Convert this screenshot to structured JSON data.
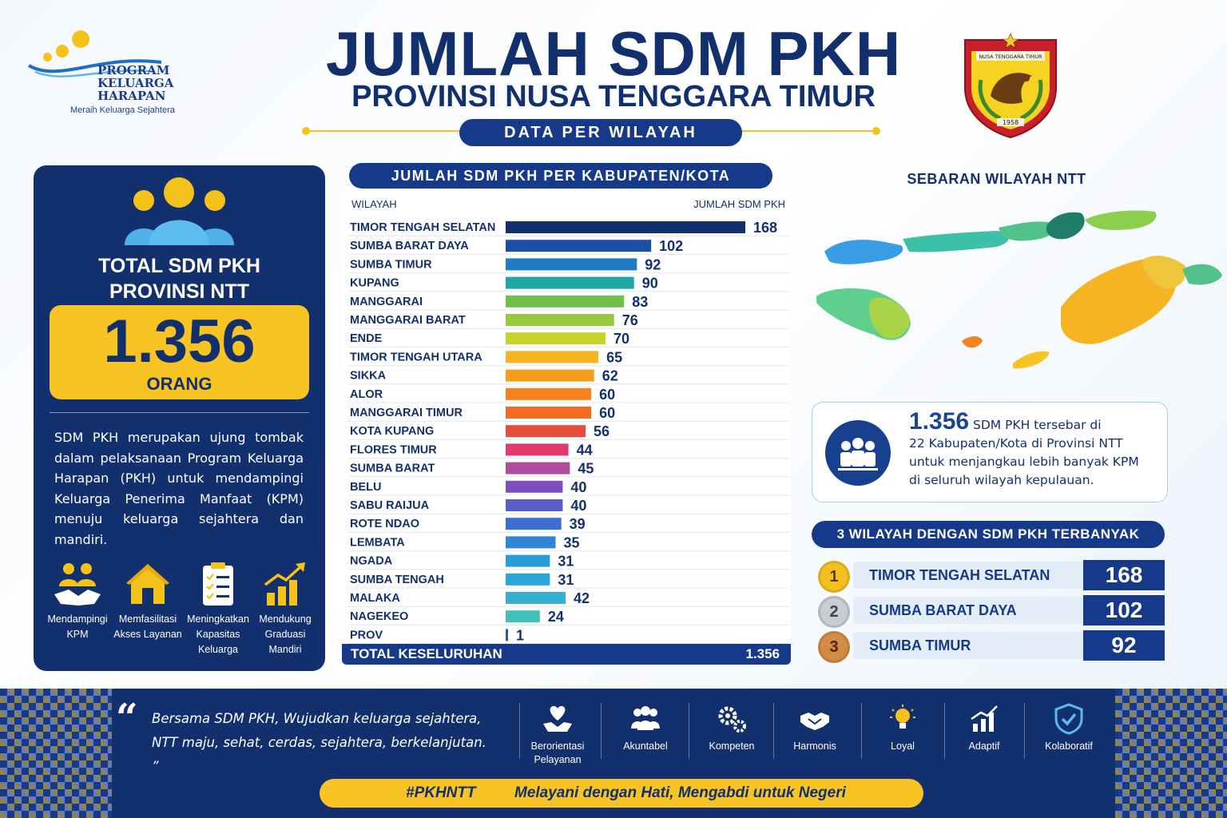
{
  "header": {
    "title": "JUMLAH SDM PKH",
    "subtitle": "PROVINSI NUSA TENGGARA TIMUR",
    "section_pill": "DATA PER WILAYAH",
    "logo_name_line1": "PROGRAM",
    "logo_name_line2": "KELUARGA",
    "logo_name_line3": "HARAPAN",
    "logo_tagline": "Meraih Keluarga Sejahtera",
    "emblem_text_top": "NUSA TENGGARA TIMUR",
    "emblem_year": "1958"
  },
  "summary": {
    "label_line1": "TOTAL SDM PKH",
    "label_line2": "PROVINSI NTT",
    "value": "1.356",
    "unit": "ORANG",
    "description": "SDM PKH merupakan ujung tombak dalam pelaksanaan Program Keluarga Harapan (PKH) untuk mendampingi Keluarga Penerima Manfaat (KPM) menuju keluarga sejahtera dan mandiri.",
    "features": [
      {
        "icon": "handshake-icon",
        "line1": "Mendampingi",
        "line2": "KPM",
        "line3": ""
      },
      {
        "icon": "house-icon",
        "line1": "Memfasilitasi",
        "line2": "Akses Layanan",
        "line3": ""
      },
      {
        "icon": "clipboard-icon",
        "line1": "Meningkatkan",
        "line2": "Kapasitas",
        "line3": "Keluarga"
      },
      {
        "icon": "growth-chart-icon",
        "line1": "Mendukung",
        "line2": "Graduasi",
        "line3": "Mandiri"
      }
    ]
  },
  "chart_data": {
    "type": "bar",
    "orientation": "horizontal",
    "title": "JUMLAH SDM PKH PER KABUPATEN/KOTA",
    "xlabel": "JUMLAH SDM PKH",
    "ylabel": "WILAYAH",
    "xlim": [
      0,
      168
    ],
    "categories": [
      "TIMOR TENGAH SELATAN",
      "SUMBA BARAT DAYA",
      "SUMBA TIMUR",
      "KUPANG",
      "MANGGARAI",
      "MANGGARAI BARAT",
      "ENDE",
      "TIMOR TENGAH UTARA",
      "SIKKA",
      "ALOR",
      "MANGGARAI TIMUR",
      "KOTA KUPANG",
      "FLORES TIMUR",
      "SUMBA BARAT",
      "BELU",
      "SABU RAIJUA",
      "ROTE NDAO",
      "LEMBATA",
      "NGADA",
      "SUMBA TENGAH",
      "MALAKA",
      "NAGEKEO",
      "PROV"
    ],
    "values": [
      168,
      102,
      92,
      90,
      83,
      76,
      70,
      65,
      62,
      60,
      60,
      56,
      44,
      45,
      40,
      40,
      39,
      35,
      31,
      31,
      42,
      24,
      1
    ],
    "colors": [
      "#13306e",
      "#1a4fa8",
      "#1e7bc7",
      "#1fa7a8",
      "#6fc04a",
      "#97c93d",
      "#c8d22a",
      "#f7b422",
      "#f79c1d",
      "#f5821f",
      "#f26b22",
      "#e84c3d",
      "#e13a6b",
      "#b04b9e",
      "#7b4fc0",
      "#5a5fc8",
      "#3b6fd1",
      "#2f86d6",
      "#2a9cd9",
      "#2aa6d8",
      "#37b0d0",
      "#43bfbb",
      "#2a5aa8"
    ],
    "total_label": "TOTAL KESELURUHAN",
    "total_value": "1.356",
    "grid": false
  },
  "map": {
    "title": "SEBARAN WILAYAH NTT"
  },
  "info": {
    "value": "1.356",
    "text_line1": "SDM PKH tersebar di",
    "text_line2": "22 Kabupaten/Kota di Provinsi NTT",
    "text_line3": "untuk menjangkau lebih banyak KPM",
    "text_line4": "di seluruh wilayah kepulauan."
  },
  "top3": {
    "title": "3 WILAYAH DENGAN SDM PKH TERBANYAK",
    "items": [
      {
        "rank": "1",
        "name": "TIMOR TENGAH SELATAN",
        "value": "168",
        "medal_color": "#f2c01f"
      },
      {
        "rank": "2",
        "name": "SUMBA BARAT DAYA",
        "value": "102",
        "medal_color": "#c9ccd2"
      },
      {
        "rank": "3",
        "name": "SUMBA TIMUR",
        "value": "92",
        "medal_color": "#d38c45"
      }
    ]
  },
  "footer": {
    "quote_line1": "Bersama SDM PKH, Wujudkan keluarga sejahtera,",
    "quote_line2": "NTT maju, sehat, cerdas, sejahtera, berkelanjutan. ”",
    "values": [
      {
        "icon": "heart-hands-icon",
        "line1": "Berorientasi",
        "line2": "Pelayanan"
      },
      {
        "icon": "group-icon",
        "line1": "Akuntabel",
        "line2": ""
      },
      {
        "icon": "gears-icon",
        "line1": "Kompeten",
        "line2": ""
      },
      {
        "icon": "handshake-icon",
        "line1": "Harmonis",
        "line2": ""
      },
      {
        "icon": "lightbulb-icon",
        "line1": "Loyal",
        "line2": ""
      },
      {
        "icon": "bar-chart-icon",
        "line1": "Adaptif",
        "line2": ""
      },
      {
        "icon": "shield-check-icon",
        "line1": "Kolaboratif",
        "line2": ""
      }
    ],
    "hashtag": "#PKHNTT",
    "slogan": "Melayani dengan Hati,  Mengabdi untuk Negeri"
  },
  "colors": {
    "navy": "#13306e",
    "accent_blue": "#16398a",
    "yellow": "#f7c424"
  }
}
